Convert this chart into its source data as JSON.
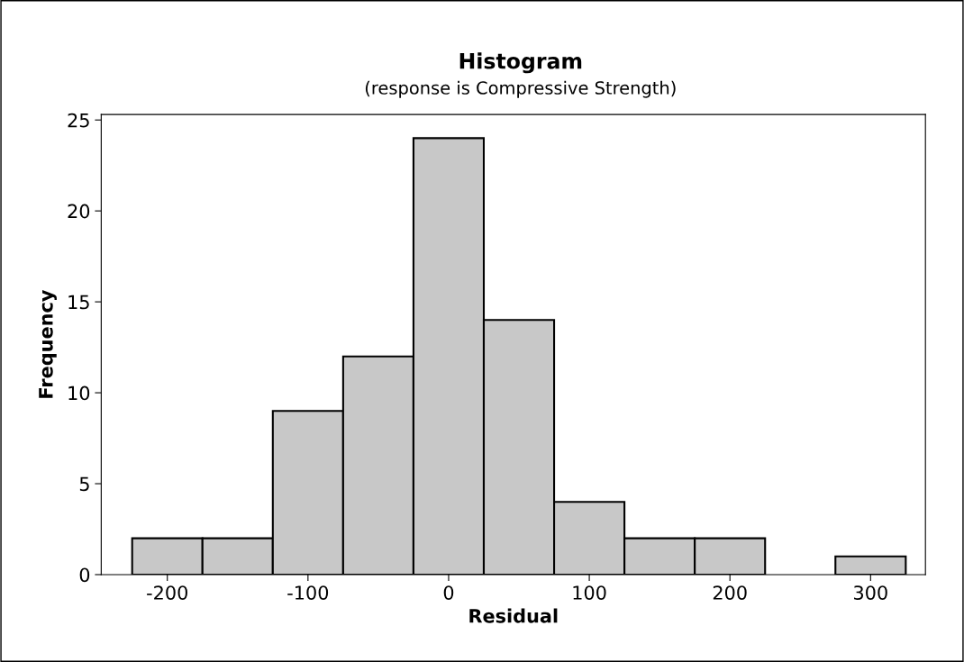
{
  "chart_data": {
    "type": "histogram",
    "title": "Histogram",
    "subtitle": "(response is Compressive Strength)",
    "xlabel": "Residual",
    "ylabel": "Frequency",
    "bins": [
      -225,
      -175,
      -125,
      -75,
      -25,
      25,
      75,
      125,
      175,
      225,
      275,
      325
    ],
    "values": [
      2,
      2,
      9,
      12,
      24,
      14,
      4,
      2,
      2,
      0,
      1
    ],
    "color": "#c8c8c8",
    "xlim": [
      -247,
      339
    ],
    "xticks": [
      -200,
      -100,
      0,
      100,
      200,
      300
    ],
    "ylim": [
      0,
      25.3
    ],
    "yticks": [
      0,
      5,
      10,
      15,
      20,
      25
    ],
    "grid": false,
    "legend": false
  }
}
